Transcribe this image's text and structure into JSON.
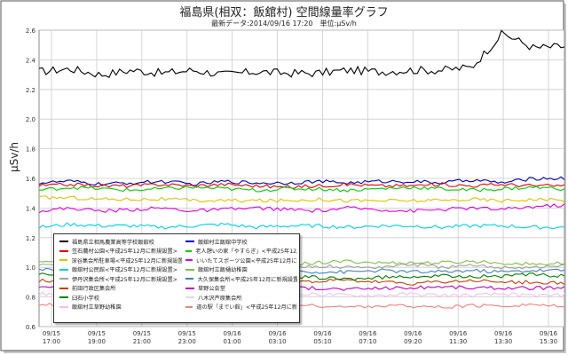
{
  "chart_data": {
    "type": "line",
    "title": "福島県(相双：飯舘村) 空間線量率グラフ",
    "subtitle": "最新データ:2014/09/16 17:20　単位:μSv/h",
    "ylabel": "μSv/h",
    "ylim": [
      0.6,
      2.6
    ],
    "yticks": [
      "0.6",
      "0.8",
      "1.0",
      "1.2",
      "1.4",
      "1.6",
      "1.8",
      "2.0",
      "2.2",
      "2.4",
      "2.6"
    ],
    "xticks": [
      [
        "09/15",
        "17:00"
      ],
      [
        "09/15",
        "19:00"
      ],
      [
        "09/15",
        "21:00"
      ],
      [
        "09/15",
        "23:00"
      ],
      [
        "09/16",
        "01:00"
      ],
      [
        "09/16",
        "03:10"
      ],
      [
        "09/16",
        "05:10"
      ],
      [
        "09/16",
        "07:10"
      ],
      [
        "09/16",
        "09:20"
      ],
      [
        "09/16",
        "11:30"
      ],
      [
        "09/16",
        "13:30"
      ],
      [
        "09/16",
        "15:30"
      ]
    ],
    "grid": true,
    "legend": "bottom-left",
    "series": [
      {
        "name": "福島県立相馬農業高等学校飯舘校",
        "color": "#000000",
        "values": [
          2.32,
          2.34,
          2.3,
          2.33,
          2.31,
          2.33,
          2.3,
          2.32,
          2.31,
          2.31,
          2.33,
          2.32,
          2.33,
          2.33,
          2.35,
          2.58,
          2.48,
          2.49
        ]
      },
      {
        "name": "飯舘村立飯舘中学校",
        "color": "#0000c0",
        "values": [
          1.57,
          1.58,
          1.56,
          1.57,
          1.58,
          1.56,
          1.58,
          1.57,
          1.57,
          1.58,
          1.57,
          1.58,
          1.58,
          1.57,
          1.59,
          1.57,
          1.6,
          1.6
        ]
      },
      {
        "name": "笠石農村公園<平成25年12月に新規設置>",
        "color": "#e00000",
        "values": [
          1.55,
          1.56,
          1.55,
          1.55,
          1.56,
          1.55,
          1.56,
          1.55,
          1.54,
          1.55,
          1.56,
          1.55,
          1.55,
          1.56,
          1.55,
          1.56,
          1.55,
          1.55
        ]
      },
      {
        "name": "老人憩いの家「やすらぎ」<平成25年12月に新規設置>",
        "color": "#00d000",
        "values": [
          1.52,
          1.54,
          1.53,
          1.52,
          1.53,
          1.54,
          1.53,
          1.52,
          1.53,
          1.53,
          1.52,
          1.53,
          1.54,
          1.53,
          1.52,
          1.53,
          1.54,
          1.53
        ]
      },
      {
        "name": "深谷集会所駐車場<平成25年12月に新規設置>",
        "color": "#e0c000",
        "values": [
          1.47,
          1.47,
          1.46,
          1.46,
          1.46,
          1.45,
          1.45,
          1.45,
          1.45,
          1.46,
          1.45,
          1.45,
          1.45,
          1.45,
          1.46,
          1.45,
          1.46,
          1.45
        ]
      },
      {
        "name": "いいたてスポーツ公園<平成25年12月に新規設置>",
        "color": "#e000e0",
        "values": [
          1.38,
          1.4,
          1.38,
          1.39,
          1.4,
          1.38,
          1.39,
          1.4,
          1.39,
          1.38,
          1.4,
          1.39,
          1.38,
          1.39,
          1.4,
          1.39,
          1.41,
          1.42
        ]
      },
      {
        "name": "飯舘村公民館<平成25年12月に新規設置>",
        "color": "#00d0e0",
        "values": [
          1.27,
          1.29,
          1.28,
          1.28,
          1.27,
          1.28,
          1.29,
          1.27,
          1.28,
          1.28,
          1.27,
          1.28,
          1.28,
          1.27,
          1.28,
          1.28,
          1.27,
          1.27
        ]
      },
      {
        "name": "飯舘村立飯樋幼稚園",
        "color": "#80c040",
        "values": [
          1.04,
          1.03,
          1.03,
          1.02,
          1.03,
          1.04,
          1.03,
          1.03,
          1.02,
          1.03,
          1.04,
          1.03,
          1.03,
          1.03,
          1.04,
          1.03,
          1.02,
          1.03
        ]
      },
      {
        "name": "伊丹沢集会所<平成25年12月に新規設置>",
        "color": "#a0a0a0",
        "values": [
          1.01,
          1.02,
          1.0,
          1.0,
          1.01,
          1.0,
          1.0,
          1.01,
          1.0,
          1.01,
          1.0,
          1.0,
          1.02,
          1.0,
          1.01,
          1.0,
          1.0,
          1.01
        ]
      },
      {
        "name": "大久保集会所<平成25年12月に新規設置>",
        "color": "#4080c0",
        "values": [
          0.98,
          0.98,
          0.97,
          0.97,
          0.98,
          0.97,
          0.97,
          0.97,
          0.98,
          0.97,
          0.97,
          0.98,
          0.97,
          0.97,
          0.98,
          0.97,
          0.98,
          0.98
        ]
      },
      {
        "name": "前田行政区集会所",
        "color": "#c04000",
        "values": [
          0.91,
          0.91,
          0.92,
          0.91,
          0.9,
          0.91,
          0.92,
          0.91,
          0.9,
          0.91,
          0.91,
          0.9,
          0.89,
          0.9,
          0.91,
          0.9,
          0.9,
          0.89
        ]
      },
      {
        "name": "草野公会堂",
        "color": "#c000c0",
        "values": [
          0.87,
          0.87,
          0.86,
          0.86,
          0.87,
          0.86,
          0.86,
          0.87,
          0.86,
          0.86,
          0.85,
          0.86,
          0.86,
          0.87,
          0.86,
          0.86,
          0.86,
          0.86
        ]
      },
      {
        "name": "臼石小学校",
        "color": "#008000",
        "values": [
          0.95,
          0.95,
          0.94,
          0.95,
          0.94,
          0.94,
          0.94,
          0.95,
          0.94,
          0.93,
          0.92,
          0.93,
          0.94,
          0.94,
          0.94,
          0.94,
          0.95,
          0.94
        ]
      },
      {
        "name": "八木沢芦原集会所",
        "color": "#ffffff",
        "values": [
          0.83,
          0.83,
          0.83,
          0.83,
          0.83,
          0.83,
          0.83,
          0.83,
          0.83,
          0.83,
          0.83,
          0.83,
          0.83,
          0.83,
          0.83,
          0.83,
          0.83,
          0.83
        ]
      },
      {
        "name": "飯舘村立草野幼稚園",
        "color": "#f0c0f0",
        "values": [
          0.82,
          0.82,
          0.81,
          0.82,
          0.81,
          0.81,
          0.82,
          0.81,
          0.81,
          0.82,
          0.81,
          0.81,
          0.82,
          0.81,
          0.81,
          0.82,
          0.81,
          0.81
        ]
      },
      {
        "name": "道の駅「までい館」<平成25年12月に新規設置>",
        "color": "#f08080",
        "values": [
          0.75,
          0.74,
          0.74,
          0.75,
          0.74,
          0.74,
          0.73,
          0.74,
          0.74,
          0.74,
          0.73,
          0.74,
          0.74,
          0.73,
          0.74,
          0.74,
          0.75,
          0.73
        ]
      }
    ]
  }
}
